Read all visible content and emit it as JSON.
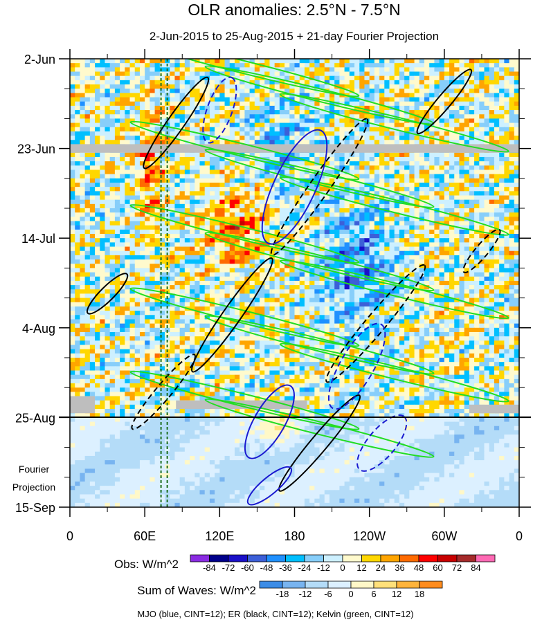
{
  "chart_data": {
    "type": "heatmap",
    "title": "OLR anomalies: 2.5°N - 7.5°N",
    "subtitle": "2-Jun-2015 to 25-Aug-2015 + 21-day Fourier Projection",
    "y_ticks": [
      "2-Jun",
      "23-Jun",
      "14-Jul",
      "4-Aug",
      "25-Aug",
      "15-Sep"
    ],
    "y_tick_days": [
      0,
      21,
      42,
      63,
      84,
      105
    ],
    "x_ticks": [
      "0",
      "60E",
      "120E",
      "180",
      "120W",
      "60W",
      "0"
    ],
    "x_tick_lons": [
      0,
      60,
      120,
      180,
      240,
      300,
      360
    ],
    "projection_label": [
      "Fourier",
      "Projection"
    ],
    "obs_legend": {
      "label": "Obs: W/m^2",
      "levels": [
        "-84",
        "-72",
        "-60",
        "-48",
        "-36",
        "-24",
        "-12",
        "0",
        "12",
        "24",
        "36",
        "48",
        "60",
        "72",
        "84"
      ],
      "colors": [
        "#8a2be2",
        "#00008b",
        "#1a10c8",
        "#3c5fd8",
        "#1f90ff",
        "#00bfff",
        "#87cefa",
        "#cdf0ff",
        "#fffacd",
        "#ffd700",
        "#ffa500",
        "#ff6a00",
        "#ff0000",
        "#c80000",
        "#a52a2a",
        "#ff69b4"
      ]
    },
    "waves_legend": {
      "label": "Sum of Waves: W/m^2",
      "levels": [
        "-18",
        "-12",
        "-6",
        "0",
        "6",
        "12",
        "18"
      ],
      "colors": [
        "#3c8ce6",
        "#78b4f0",
        "#b4dcf8",
        "#dcf0ff",
        "#fff8c8",
        "#ffe07a",
        "#ffb43c",
        "#ff8c1e"
      ]
    },
    "contour_note": "MJO (blue, CINT=12); ER (black, CINT=12); Kelvin (green, CINT=12)",
    "series": [
      {
        "name": "MJO",
        "color": "#1a1ad0"
      },
      {
        "name": "ER",
        "color": "#000000"
      },
      {
        "name": "Kelvin",
        "color": "#22dd22"
      }
    ],
    "separator_day": 84,
    "reference_lons": [
      73,
      78
    ]
  }
}
